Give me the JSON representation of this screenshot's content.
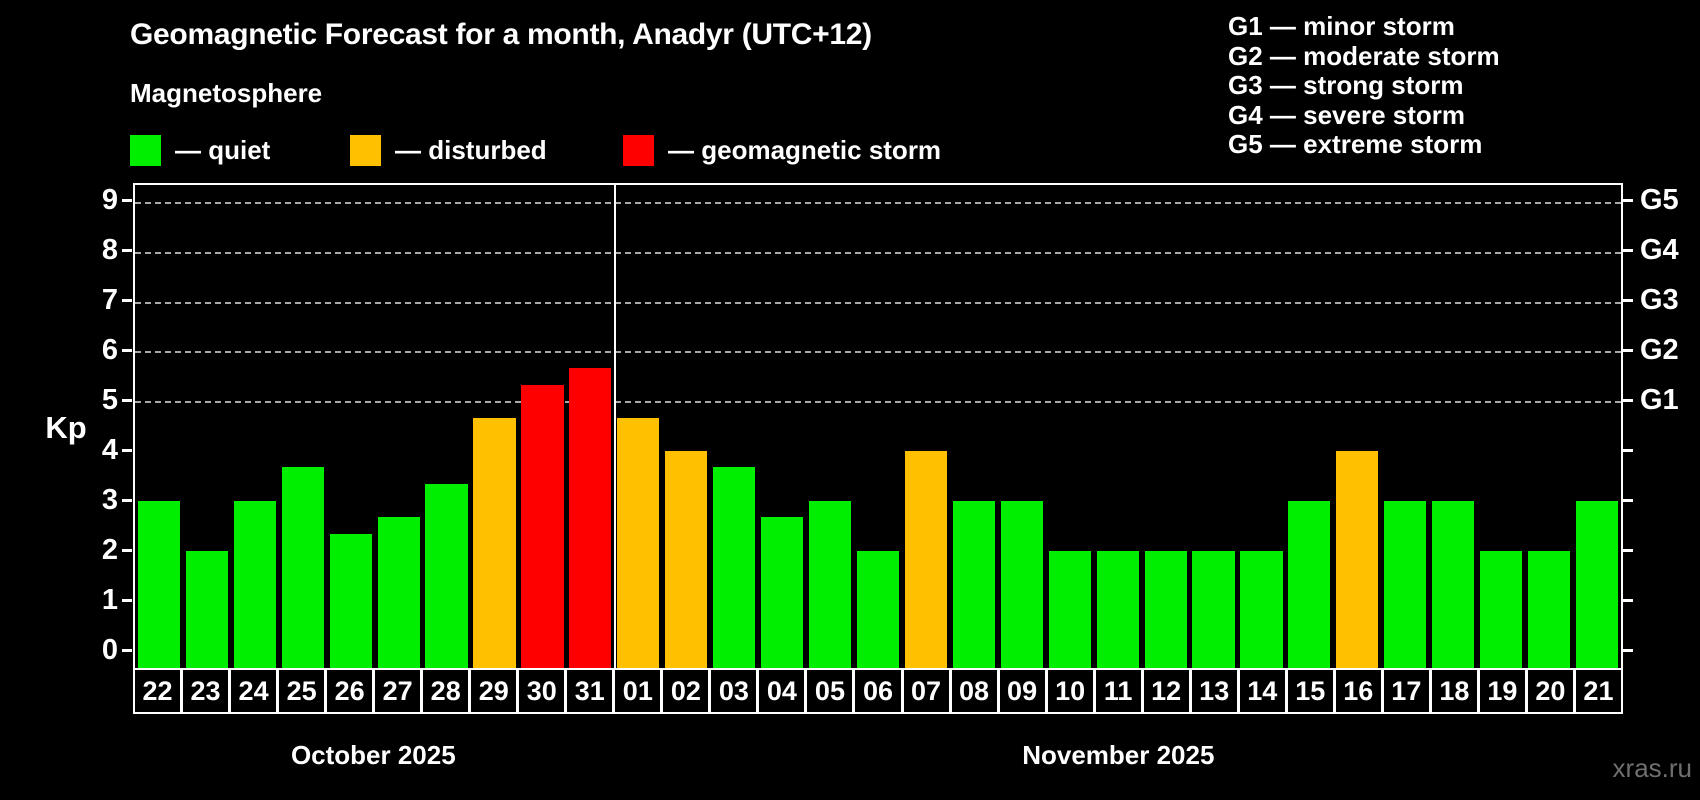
{
  "title": "Geomagnetic Forecast for a month, Anadyr (UTC+12)",
  "subtitle": "Magnetosphere",
  "legend": {
    "items": [
      {
        "status": "quiet",
        "color": "#00ee00",
        "label": "— quiet"
      },
      {
        "status": "disturbed",
        "color": "#ffc000",
        "label": "— disturbed"
      },
      {
        "status": "storm",
        "color": "#ff0000",
        "label": "— geomagnetic storm"
      }
    ]
  },
  "storm_legend": {
    "lines": [
      "G1 — minor storm",
      "G2 — moderate storm",
      "G3 — strong storm",
      "G4 — severe storm",
      "G5 — extreme storm"
    ]
  },
  "y_axis": {
    "label": "Kp",
    "ticks": [
      0,
      1,
      2,
      3,
      4,
      5,
      6,
      7,
      8,
      9
    ]
  },
  "right_axis": {
    "labels": [
      {
        "value": 5,
        "text": "G1"
      },
      {
        "value": 6,
        "text": "G2"
      },
      {
        "value": 7,
        "text": "G3"
      },
      {
        "value": 8,
        "text": "G4"
      },
      {
        "value": 9,
        "text": "G5"
      }
    ]
  },
  "chart_data": {
    "type": "bar",
    "ylabel": "Kp",
    "ylim": [
      -0.36,
      9.34
    ],
    "gridlines": [
      5,
      6,
      7,
      8,
      9
    ],
    "grid": "dashed, horizontal at G1–G5 levels only",
    "legend_position": "top-left",
    "months": [
      {
        "label": "October 2025",
        "days": 10
      },
      {
        "label": "November 2025",
        "days": 21
      }
    ],
    "bars": [
      {
        "day": "22",
        "value": 3.0,
        "status": "quiet"
      },
      {
        "day": "23",
        "value": 2.0,
        "status": "quiet"
      },
      {
        "day": "24",
        "value": 3.0,
        "status": "quiet"
      },
      {
        "day": "25",
        "value": 3.67,
        "status": "quiet"
      },
      {
        "day": "26",
        "value": 2.33,
        "status": "quiet"
      },
      {
        "day": "27",
        "value": 2.67,
        "status": "quiet"
      },
      {
        "day": "28",
        "value": 3.33,
        "status": "quiet"
      },
      {
        "day": "29",
        "value": 4.67,
        "status": "disturbed"
      },
      {
        "day": "30",
        "value": 5.33,
        "status": "storm"
      },
      {
        "day": "31",
        "value": 5.67,
        "status": "storm"
      },
      {
        "day": "01",
        "value": 4.67,
        "status": "disturbed"
      },
      {
        "day": "02",
        "value": 4.0,
        "status": "disturbed"
      },
      {
        "day": "03",
        "value": 3.67,
        "status": "quiet"
      },
      {
        "day": "04",
        "value": 2.67,
        "status": "quiet"
      },
      {
        "day": "05",
        "value": 3.0,
        "status": "quiet"
      },
      {
        "day": "06",
        "value": 2.0,
        "status": "quiet"
      },
      {
        "day": "07",
        "value": 4.0,
        "status": "disturbed"
      },
      {
        "day": "08",
        "value": 3.0,
        "status": "quiet"
      },
      {
        "day": "09",
        "value": 3.0,
        "status": "quiet"
      },
      {
        "day": "10",
        "value": 2.0,
        "status": "quiet"
      },
      {
        "day": "11",
        "value": 2.0,
        "status": "quiet"
      },
      {
        "day": "12",
        "value": 2.0,
        "status": "quiet"
      },
      {
        "day": "13",
        "value": 2.0,
        "status": "quiet"
      },
      {
        "day": "14",
        "value": 2.0,
        "status": "quiet"
      },
      {
        "day": "15",
        "value": 3.0,
        "status": "quiet"
      },
      {
        "day": "16",
        "value": 4.0,
        "status": "disturbed"
      },
      {
        "day": "17",
        "value": 3.0,
        "status": "quiet"
      },
      {
        "day": "18",
        "value": 3.0,
        "status": "quiet"
      },
      {
        "day": "19",
        "value": 2.0,
        "status": "quiet"
      },
      {
        "day": "20",
        "value": 2.0,
        "status": "quiet"
      },
      {
        "day": "21",
        "value": 3.0,
        "status": "quiet"
      }
    ]
  },
  "watermark": "xras.ru"
}
